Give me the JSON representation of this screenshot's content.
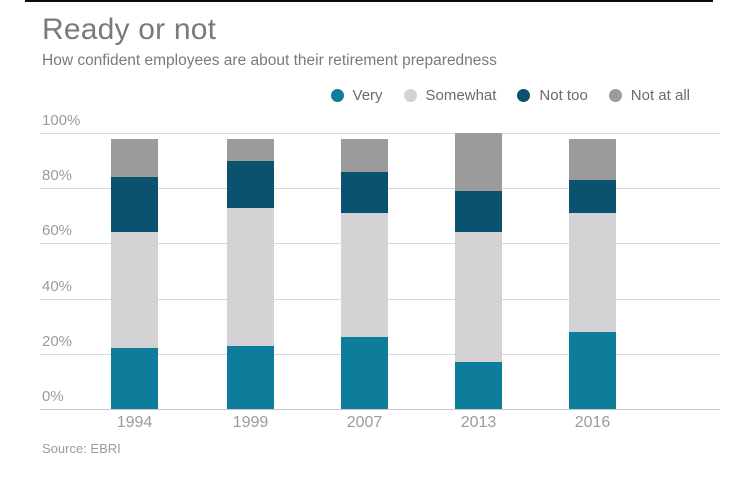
{
  "header": {
    "title": "Ready or not",
    "subtitle": "How confident employees are about their retirement preparedness"
  },
  "chart_data": {
    "type": "bar",
    "stacked": true,
    "title": "Ready or not",
    "subtitle": "How confident employees are about their retirement preparedness",
    "categories": [
      "1994",
      "1999",
      "2007",
      "2013",
      "2016"
    ],
    "series": [
      {
        "name": "Very",
        "color": "#0e7d9b",
        "values": [
          22,
          23,
          26,
          17,
          28
        ]
      },
      {
        "name": "Somewhat",
        "color": "#d3d3d5",
        "values": [
          42,
          50,
          45,
          47,
          43
        ]
      },
      {
        "name": "Not too",
        "color": "#0a526e",
        "values": [
          20,
          17,
          15,
          15,
          12
        ]
      },
      {
        "name": "Not at all",
        "color": "#9b9b9b",
        "values": [
          14,
          8,
          12,
          21,
          15
        ]
      }
    ],
    "totals": [
      98,
      98,
      98,
      100,
      98
    ],
    "ylim": [
      0,
      100
    ],
    "yticks": [
      "0%",
      "20%",
      "40%",
      "60%",
      "80%",
      "100%"
    ],
    "grid": true,
    "legend_position": "top-right",
    "xlabel": "",
    "ylabel": ""
  },
  "source": {
    "label": "Source: EBRI"
  },
  "colors": {
    "very": "#0e7d9b",
    "somewhat": "#d3d3d5",
    "not_too": "#0a526e",
    "not_at_all": "#9b9b9b",
    "text_muted": "#7a7a7a",
    "axis_text": "#9b9b9b",
    "gridline": "#d8d8d8",
    "top_rule": "#0a0a0a"
  }
}
